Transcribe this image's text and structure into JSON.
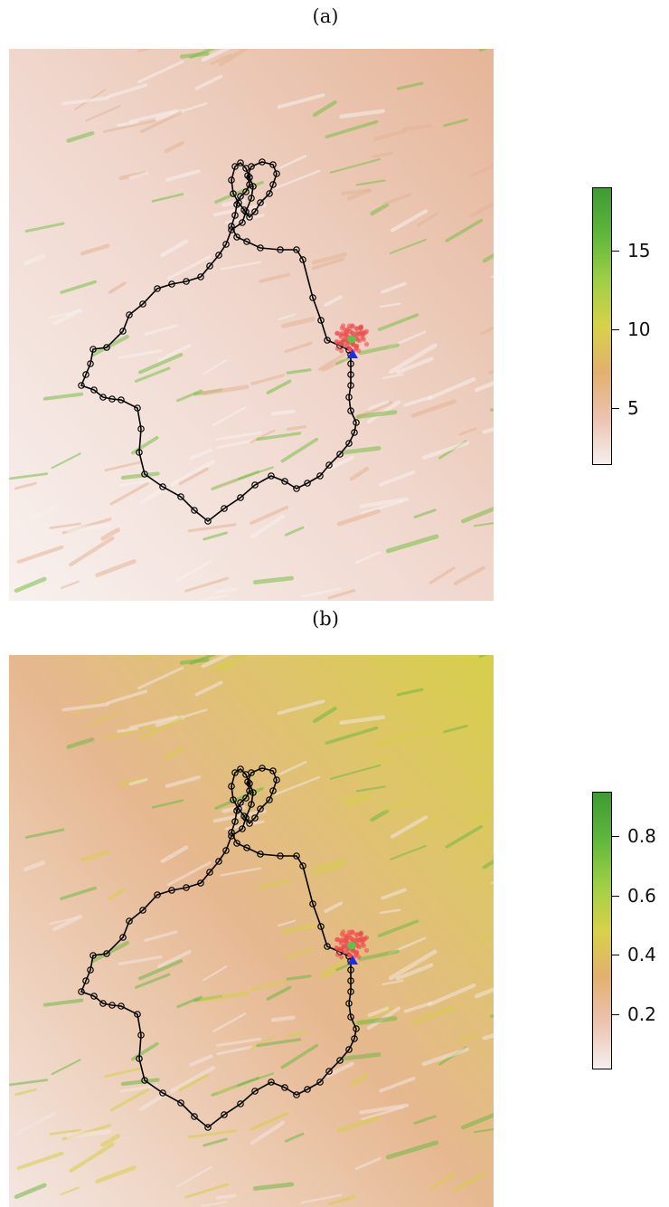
{
  "panels": [
    {
      "label": "(a)",
      "colorbar": {
        "ticks": [
          "5",
          "10",
          "15"
        ],
        "tick_values": [
          5,
          10,
          15
        ],
        "range": [
          1.5,
          19
        ],
        "colors": [
          "#f6eeee",
          "#ecc3b0",
          "#e2b06f",
          "#d8d14a",
          "#9fcf46",
          "#5fb63c",
          "#3f9a34"
        ]
      },
      "map_colors": {
        "base": "#f0d7cd",
        "light": "#f8f1ef",
        "mid": "#e5b597",
        "high": "#78c045"
      }
    },
    {
      "label": "(b)",
      "colorbar": {
        "ticks": [
          "0.2",
          "0.4",
          "0.6",
          "0.8"
        ],
        "tick_values": [
          0.2,
          0.4,
          0.6,
          0.8
        ],
        "range": [
          0.02,
          0.95
        ],
        "colors": [
          "#f6eeee",
          "#ecc3b0",
          "#e2b06f",
          "#d8d14a",
          "#9fcf46",
          "#5fb63c",
          "#3f9a34"
        ]
      },
      "map_colors": {
        "base": "#e6b890",
        "light": "#f4e6e2",
        "mid": "#d7cf4a",
        "high": "#6fb944"
      }
    }
  ],
  "track": {
    "line_color": "#000000",
    "marker": "open-circle",
    "estimate_cloud_color": "#ee4c4c",
    "estimate_center_color": "#5cc34a",
    "start_marker": "blue-triangle",
    "start_marker_color": "#1a2cf0"
  }
}
